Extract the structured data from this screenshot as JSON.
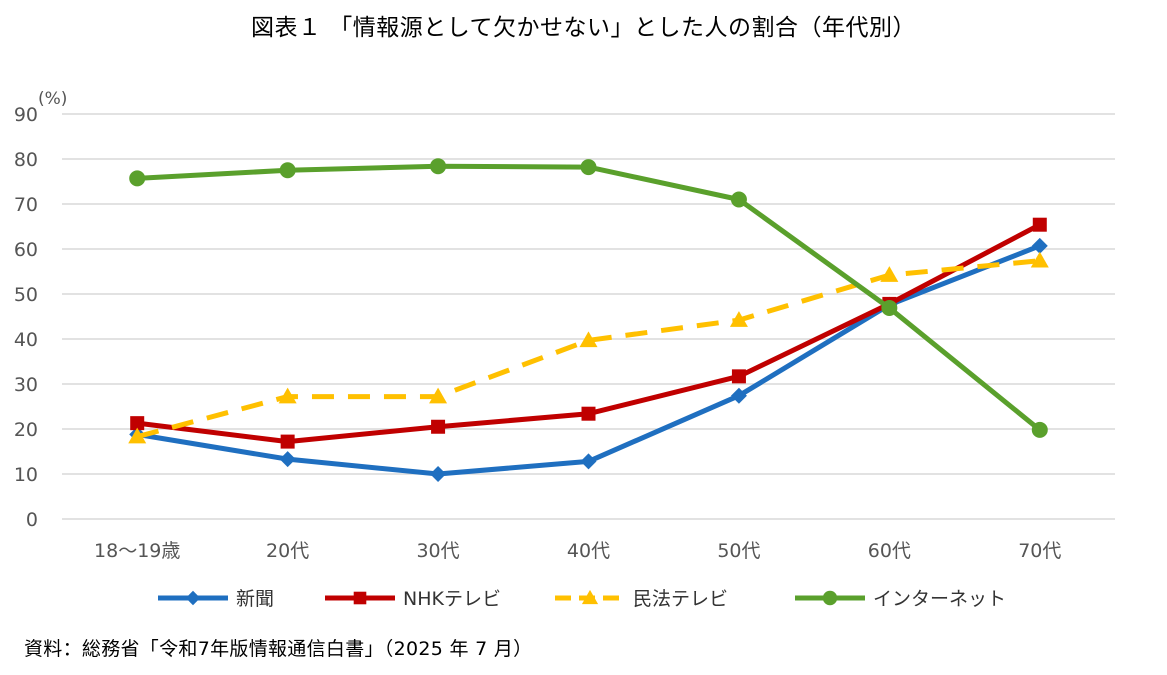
{
  "chart_data": {
    "type": "line",
    "title": "図表１ 「情報源として欠かせない」とした人の割合（年代別）",
    "ylabel": "(%)",
    "xlabel": "",
    "ylim": [
      0,
      90
    ],
    "yticks": [
      0,
      10,
      20,
      30,
      40,
      50,
      60,
      70,
      80,
      90
    ],
    "grid": true,
    "legend_position": "bottom",
    "categories": [
      "18～19歳",
      "20代",
      "30代",
      "40代",
      "50代",
      "60代",
      "70代"
    ],
    "series": [
      {
        "name": "新聞",
        "color": "#1f6fc0",
        "marker": "diamond",
        "dash": "solid",
        "values": [
          18.8,
          13.3,
          10.0,
          12.8,
          27.4,
          47.6,
          60.7
        ]
      },
      {
        "name": "NHKテレビ",
        "color": "#c00000",
        "marker": "square",
        "dash": "solid",
        "values": [
          21.3,
          17.2,
          20.5,
          23.4,
          31.7,
          47.8,
          65.4
        ]
      },
      {
        "name": "民法テレビ",
        "color": "#ffc000",
        "marker": "triangle",
        "dash": "dashed",
        "values": [
          18.3,
          27.2,
          27.2,
          39.7,
          44.2,
          54.2,
          57.4
        ]
      },
      {
        "name": "インターネット",
        "color": "#5aa02c",
        "marker": "circle",
        "dash": "solid",
        "values": [
          75.7,
          77.5,
          78.4,
          78.2,
          71.0,
          46.9,
          19.8
        ]
      }
    ]
  },
  "source_note": "資料：総務省「令和7年版情報通信白書」（2025 年 7 月）",
  "gridline_color": "#d9d9d9"
}
